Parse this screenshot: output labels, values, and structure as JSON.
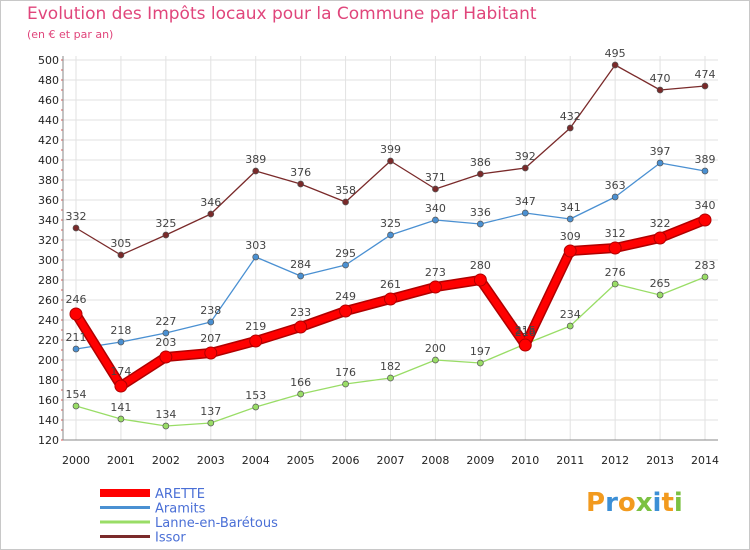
{
  "header": {
    "title": "Evolution des Impôts locaux pour la Commune par Habitant",
    "subtitle": "(en € et par an)"
  },
  "logo": {
    "text": "Proxiti",
    "colors": [
      "#f29a1e",
      "#3c8fd6",
      "#f29a1e",
      "#7cc142",
      "#3c8fd6",
      "#f29a1e",
      "#7cc142"
    ]
  },
  "chart_data": {
    "type": "line",
    "x": [
      2000,
      2001,
      2002,
      2003,
      2004,
      2005,
      2006,
      2007,
      2008,
      2009,
      2010,
      2011,
      2012,
      2013,
      2014
    ],
    "ylim": [
      120,
      500
    ],
    "yticks": [
      120,
      140,
      160,
      180,
      200,
      220,
      240,
      260,
      280,
      300,
      320,
      340,
      360,
      380,
      400,
      420,
      440,
      460,
      480,
      500
    ],
    "grid": true,
    "legend_position": "bottom-left",
    "series": [
      {
        "name": "ARETTE",
        "color": "#ff0000",
        "values": [
          246,
          174,
          203,
          207,
          219,
          233,
          249,
          261,
          273,
          280,
          215,
          309,
          312,
          322,
          340
        ]
      },
      {
        "name": "Aramits",
        "color": "#4a90d2",
        "values": [
          211,
          218,
          227,
          238,
          303,
          284,
          295,
          325,
          340,
          336,
          347,
          341,
          363,
          397,
          389
        ]
      },
      {
        "name": "Lanne-en-Barétous",
        "color": "#99dd66",
        "values": [
          154,
          141,
          134,
          137,
          153,
          166,
          176,
          182,
          200,
          197,
          216,
          234,
          276,
          265,
          283
        ]
      },
      {
        "name": "Issor",
        "color": "#7a2a2a",
        "values": [
          332,
          305,
          325,
          346,
          389,
          376,
          358,
          399,
          371,
          386,
          392,
          432,
          495,
          470,
          474
        ]
      }
    ]
  }
}
